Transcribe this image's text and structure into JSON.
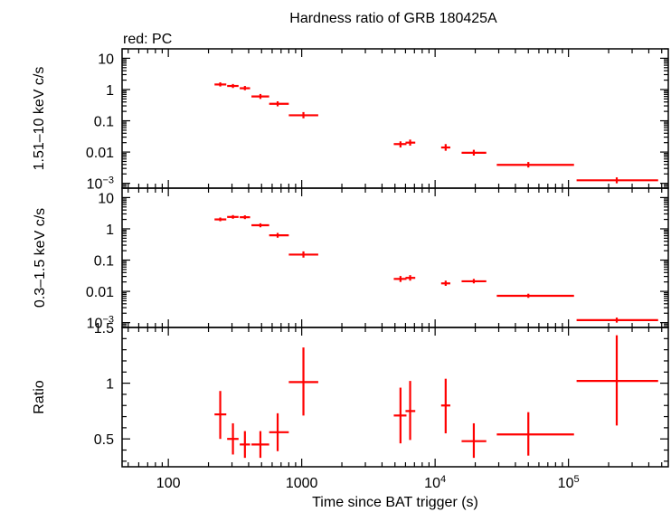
{
  "chart_data": {
    "type": "scatter",
    "title": "Hardness ratio of GRB 180425A",
    "legend": "red: PC",
    "series_color": "#ff0000",
    "xlabel": "Time since BAT trigger (s)",
    "xscale": "log",
    "xlim": [
      45,
      560000
    ],
    "x_ticks": [
      {
        "value": 100,
        "label": "100"
      },
      {
        "value": 1000,
        "label": "1000"
      },
      {
        "value": 10000,
        "label": "10",
        "sup": "4"
      },
      {
        "value": 100000,
        "label": "10",
        "sup": "5"
      }
    ],
    "panels": [
      {
        "id": "hard",
        "ylabel": "1.51–10 keV c/s",
        "yscale": "log",
        "ylim": [
          0.0007,
          20
        ],
        "y_ticks": [
          {
            "value": 10,
            "label": "10"
          },
          {
            "value": 1,
            "label": "1"
          },
          {
            "value": 0.1,
            "label": "0.1"
          },
          {
            "value": 0.01,
            "label": "0.01"
          },
          {
            "value": 0.001,
            "label": "10",
            "sup": "−3"
          }
        ],
        "points": [
          {
            "x": 245,
            "xlo": 222,
            "xhi": 272,
            "y": 1.45,
            "ylo": 1.25,
            "yhi": 1.7
          },
          {
            "x": 305,
            "xlo": 276,
            "xhi": 336,
            "y": 1.3,
            "ylo": 1.12,
            "yhi": 1.5
          },
          {
            "x": 375,
            "xlo": 343,
            "xhi": 410,
            "y": 1.1,
            "ylo": 0.95,
            "yhi": 1.3
          },
          {
            "x": 490,
            "xlo": 420,
            "xhi": 570,
            "y": 0.6,
            "ylo": 0.5,
            "yhi": 0.72
          },
          {
            "x": 660,
            "xlo": 570,
            "xhi": 800,
            "y": 0.35,
            "ylo": 0.29,
            "yhi": 0.42
          },
          {
            "x": 1030,
            "xlo": 800,
            "xhi": 1330,
            "y": 0.15,
            "ylo": 0.12,
            "yhi": 0.19
          },
          {
            "x": 5500,
            "xlo": 4900,
            "xhi": 6100,
            "y": 0.018,
            "ylo": 0.014,
            "yhi": 0.022
          },
          {
            "x": 6500,
            "xlo": 6000,
            "xhi": 7100,
            "y": 0.02,
            "ylo": 0.016,
            "yhi": 0.025
          },
          {
            "x": 12000,
            "xlo": 11100,
            "xhi": 13000,
            "y": 0.014,
            "ylo": 0.011,
            "yhi": 0.018
          },
          {
            "x": 19500,
            "xlo": 15800,
            "xhi": 24200,
            "y": 0.0095,
            "ylo": 0.0077,
            "yhi": 0.0118
          },
          {
            "x": 50000,
            "xlo": 29000,
            "xhi": 110000,
            "y": 0.0039,
            "ylo": 0.0032,
            "yhi": 0.0048
          },
          {
            "x": 230000,
            "xlo": 115000,
            "xhi": 470000,
            "y": 0.00125,
            "ylo": 0.001,
            "yhi": 0.00155
          }
        ]
      },
      {
        "id": "soft",
        "ylabel": "0.3–1.5 keV c/s",
        "yscale": "log",
        "ylim": [
          0.0007,
          20
        ],
        "y_ticks": [
          {
            "value": 10,
            "label": "10"
          },
          {
            "value": 1,
            "label": "1"
          },
          {
            "value": 0.1,
            "label": "0.1"
          },
          {
            "value": 0.01,
            "label": "0.01"
          },
          {
            "value": 0.001,
            "label": "10",
            "sup": "−3"
          }
        ],
        "points": [
          {
            "x": 245,
            "xlo": 222,
            "xhi": 272,
            "y": 2.0,
            "ylo": 1.75,
            "yhi": 2.3
          },
          {
            "x": 305,
            "xlo": 276,
            "xhi": 336,
            "y": 2.4,
            "ylo": 2.1,
            "yhi": 2.75
          },
          {
            "x": 375,
            "xlo": 343,
            "xhi": 410,
            "y": 2.35,
            "ylo": 2.05,
            "yhi": 2.7
          },
          {
            "x": 490,
            "xlo": 420,
            "xhi": 570,
            "y": 1.3,
            "ylo": 1.12,
            "yhi": 1.5
          },
          {
            "x": 660,
            "xlo": 570,
            "xhi": 800,
            "y": 0.62,
            "ylo": 0.52,
            "yhi": 0.74
          },
          {
            "x": 1030,
            "xlo": 800,
            "xhi": 1330,
            "y": 0.15,
            "ylo": 0.12,
            "yhi": 0.19
          },
          {
            "x": 5500,
            "xlo": 4900,
            "xhi": 6100,
            "y": 0.025,
            "ylo": 0.02,
            "yhi": 0.031
          },
          {
            "x": 6500,
            "xlo": 6000,
            "xhi": 7100,
            "y": 0.027,
            "ylo": 0.022,
            "yhi": 0.033
          },
          {
            "x": 12000,
            "xlo": 11100,
            "xhi": 13000,
            "y": 0.018,
            "ylo": 0.015,
            "yhi": 0.022
          },
          {
            "x": 19500,
            "xlo": 15800,
            "xhi": 24200,
            "y": 0.021,
            "ylo": 0.018,
            "yhi": 0.025
          },
          {
            "x": 50000,
            "xlo": 29000,
            "xhi": 110000,
            "y": 0.0072,
            "ylo": 0.0062,
            "yhi": 0.0084
          },
          {
            "x": 230000,
            "xlo": 115000,
            "xhi": 470000,
            "y": 0.0012,
            "ylo": 0.001,
            "yhi": 0.00145
          }
        ]
      },
      {
        "id": "ratio",
        "ylabel": "Ratio",
        "yscale": "linear",
        "ylim": [
          0.25,
          1.5
        ],
        "y_ticks": [
          {
            "value": 1.5,
            "label": "1.5"
          },
          {
            "value": 1,
            "label": "1"
          },
          {
            "value": 0.5,
            "label": "0.5"
          }
        ],
        "points": [
          {
            "x": 245,
            "xlo": 222,
            "xhi": 272,
            "y": 0.72,
            "ylo": 0.5,
            "yhi": 0.93
          },
          {
            "x": 305,
            "xlo": 276,
            "xhi": 336,
            "y": 0.5,
            "ylo": 0.36,
            "yhi": 0.64
          },
          {
            "x": 375,
            "xlo": 343,
            "xhi": 410,
            "y": 0.45,
            "ylo": 0.33,
            "yhi": 0.57
          },
          {
            "x": 490,
            "xlo": 420,
            "xhi": 570,
            "y": 0.45,
            "ylo": 0.33,
            "yhi": 0.57
          },
          {
            "x": 660,
            "xlo": 570,
            "xhi": 800,
            "y": 0.56,
            "ylo": 0.39,
            "yhi": 0.73
          },
          {
            "x": 1030,
            "xlo": 800,
            "xhi": 1330,
            "y": 1.01,
            "ylo": 0.71,
            "yhi": 1.32
          },
          {
            "x": 5500,
            "xlo": 4900,
            "xhi": 6100,
            "y": 0.71,
            "ylo": 0.46,
            "yhi": 0.96
          },
          {
            "x": 6500,
            "xlo": 6000,
            "xhi": 7100,
            "y": 0.75,
            "ylo": 0.49,
            "yhi": 1.02
          },
          {
            "x": 12000,
            "xlo": 11100,
            "xhi": 13000,
            "y": 0.8,
            "ylo": 0.55,
            "yhi": 1.04
          },
          {
            "x": 19500,
            "xlo": 15800,
            "xhi": 24200,
            "y": 0.48,
            "ylo": 0.33,
            "yhi": 0.64
          },
          {
            "x": 50000,
            "xlo": 29000,
            "xhi": 110000,
            "y": 0.54,
            "ylo": 0.35,
            "yhi": 0.74
          },
          {
            "x": 230000,
            "xlo": 115000,
            "xhi": 470000,
            "y": 1.02,
            "ylo": 0.62,
            "yhi": 1.43
          }
        ]
      }
    ]
  }
}
